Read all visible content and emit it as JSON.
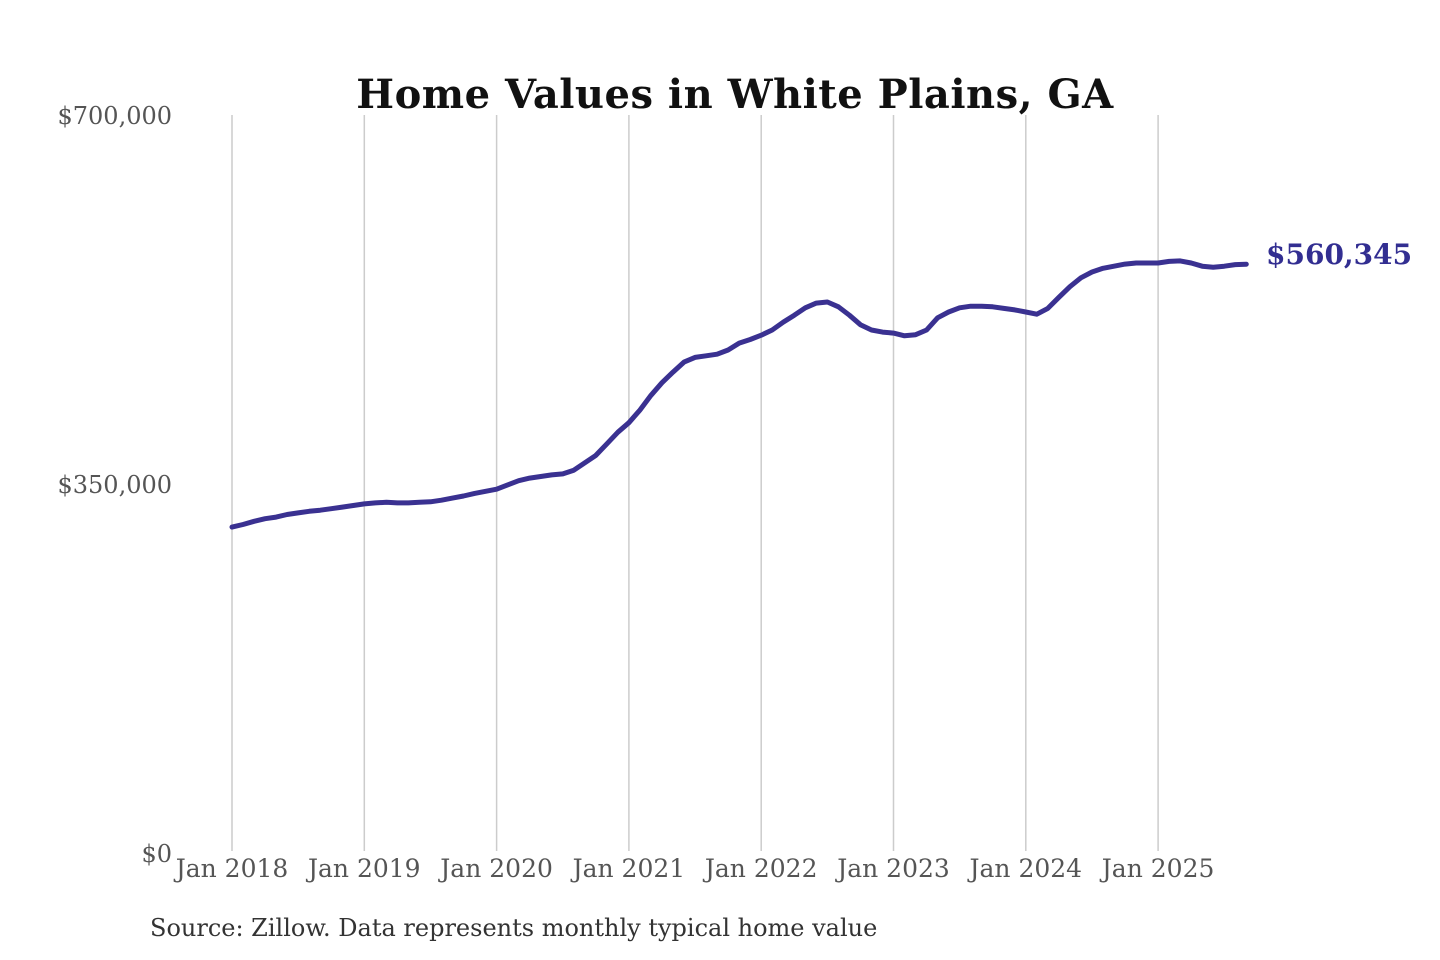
{
  "title": "Home Values in White Plains, GA",
  "source_note": "Source: Zillow. Data represents monthly typical home value",
  "annotation": {
    "label": "$560,345",
    "color": "#322e91"
  },
  "colors": {
    "line": "#3a3191",
    "gridline": "#cccccc",
    "tick_label": "#555555",
    "title": "#111111"
  },
  "y_axis": {
    "tick_labels": [
      "$700,000",
      "$350,000",
      "$0"
    ],
    "tick_values": [
      700000,
      350000,
      0
    ]
  },
  "x_axis": {
    "tick_labels": [
      "Jan 2018",
      "Jan 2019",
      "Jan 2020",
      "Jan 2021",
      "Jan 2022",
      "Jan 2023",
      "Jan 2024",
      "Jan 2025"
    ]
  },
  "chart_data": {
    "type": "line",
    "title": "Home Values in White Plains, GA",
    "xlabel": "",
    "ylabel": "",
    "ylim": [
      0,
      700000
    ],
    "yticks": [
      0,
      350000,
      700000
    ],
    "xticks": [
      "Jan 2018",
      "Jan 2019",
      "Jan 2020",
      "Jan 2021",
      "Jan 2022",
      "Jan 2023",
      "Jan 2024",
      "Jan 2025"
    ],
    "grid": "vertical-only",
    "legend_position": "none",
    "frequency": "monthly",
    "start_month": "2018-01",
    "end_month": "2025-09",
    "final_value": 560345,
    "final_value_label": "$560,345",
    "series": [
      {
        "name": "Typical home value",
        "values": [
          311000,
          313500,
          316500,
          319000,
          320500,
          323000,
          324500,
          326000,
          327000,
          328500,
          330000,
          331500,
          333000,
          334000,
          334500,
          334000,
          334000,
          334500,
          335000,
          336500,
          338500,
          340500,
          343000,
          345000,
          347000,
          351000,
          355000,
          357500,
          359000,
          360500,
          361500,
          365000,
          372000,
          379000,
          390000,
          401000,
          410000,
          422000,
          436000,
          448000,
          458000,
          467500,
          472000,
          473500,
          475000,
          479000,
          485500,
          489000,
          493000,
          498000,
          505500,
          512000,
          519000,
          523500,
          524500,
          520000,
          512000,
          503000,
          498000,
          496000,
          495000,
          492500,
          493500,
          498000,
          509500,
          515000,
          519000,
          520500,
          520500,
          520000,
          518500,
          517000,
          515000,
          513000,
          518500,
          529000,
          539000,
          547500,
          553000,
          556500,
          558500,
          560500,
          561500,
          561500,
          561500,
          563000,
          563500,
          561500,
          558500,
          557500,
          558500,
          560000,
          560345
        ]
      }
    ]
  }
}
